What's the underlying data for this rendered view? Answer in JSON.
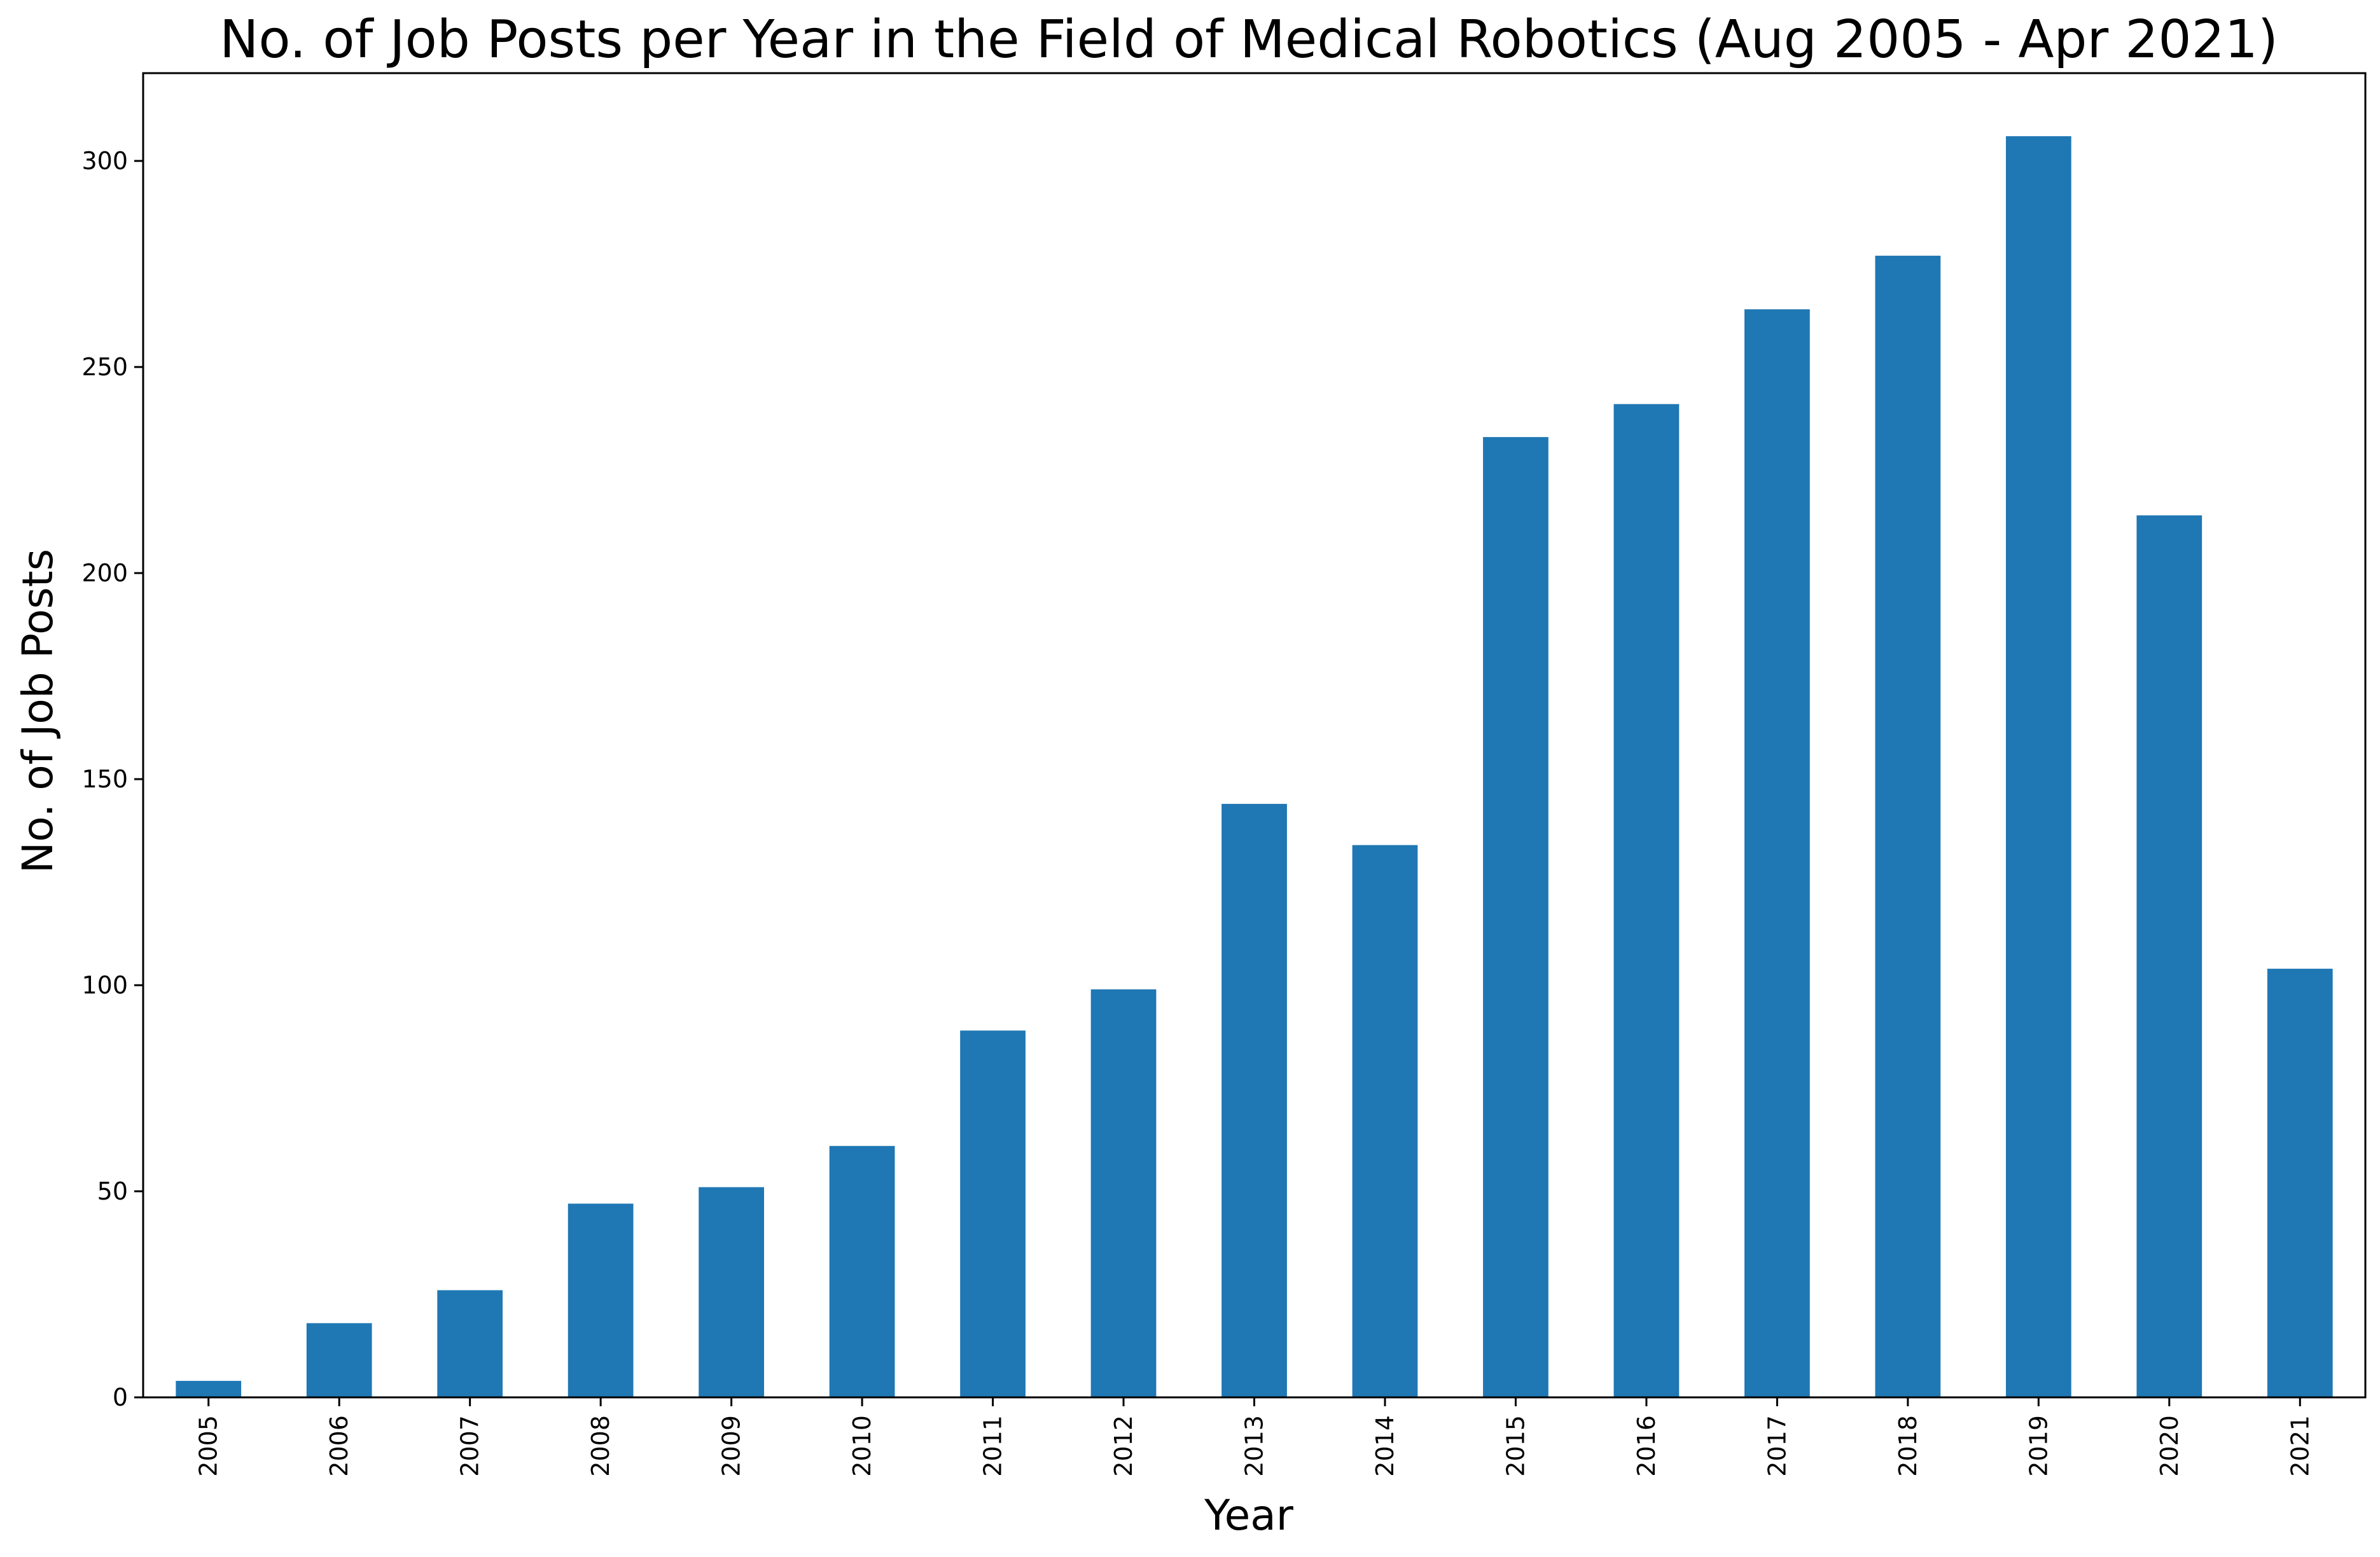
{
  "chart_data": {
    "type": "bar",
    "title": "No. of Job Posts per Year in the Field of Medical Robotics (Aug 2005 - Apr 2021)",
    "xlabel": "Year",
    "ylabel": "No. of Job Posts",
    "categories": [
      "2005",
      "2006",
      "2007",
      "2008",
      "2009",
      "2010",
      "2011",
      "2012",
      "2013",
      "2014",
      "2015",
      "2016",
      "2017",
      "2018",
      "2019",
      "2020",
      "2021"
    ],
    "values": [
      4,
      18,
      26,
      47,
      51,
      61,
      89,
      99,
      144,
      134,
      233,
      241,
      264,
      277,
      306,
      214,
      104
    ],
    "ylim": [
      0,
      321.3
    ],
    "yticks": [
      0,
      50,
      100,
      150,
      200,
      250,
      300
    ],
    "grid": false,
    "legend": "none",
    "bar_color": "#1f77b4"
  }
}
